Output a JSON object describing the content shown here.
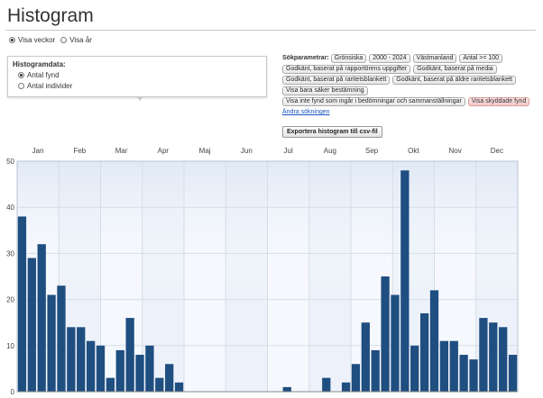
{
  "page": {
    "title": "Histogram"
  },
  "view_toggle": {
    "options": [
      {
        "label": "Visa veckor",
        "selected": true
      },
      {
        "label": "Visa år",
        "selected": false
      }
    ]
  },
  "histogram_data": {
    "heading": "Histogramdata:",
    "options": [
      {
        "label": "Antal fynd",
        "selected": true
      },
      {
        "label": "Antal individer",
        "selected": false
      }
    ]
  },
  "search_params": {
    "label": "Sökparametrar:",
    "tags": [
      {
        "text": "Grönsiska",
        "highlight": false
      },
      {
        "text": "2000 - 2024",
        "highlight": false
      },
      {
        "text": "Västmanland",
        "highlight": false
      },
      {
        "text": "Antal >= 100",
        "highlight": false
      },
      {
        "text": "Godkänt, baserat på rapportörens uppgifter",
        "highlight": false
      },
      {
        "text": "Godkänt, baserat på media",
        "highlight": false
      },
      {
        "text": "Godkänt, baserat på raritetsblankett",
        "highlight": false
      },
      {
        "text": "Godkänt, baserat på äldre raritetsblankett",
        "highlight": false
      },
      {
        "text": "Visa bara säker bestämning",
        "highlight": false
      },
      {
        "text": "Visa inte fynd som ingår i bedömningar och sammanställningar",
        "highlight": false
      },
      {
        "text": "Visa skyddade fynd",
        "highlight": true
      }
    ],
    "change_link": "Ändra sökningen",
    "export_button": "Exportera histogram till csv-fil"
  },
  "colors": {
    "bar": "#1f4e80",
    "grid": "#d5dde6",
    "bg_light": "#f5f8fd",
    "bg_dark": "#e6edf8",
    "axis": "#888888"
  },
  "chart_data": {
    "type": "bar",
    "title": "",
    "xlabel": "",
    "ylabel": "",
    "x_unit": "week",
    "months": [
      "Jan",
      "Feb",
      "Mar",
      "Apr",
      "Maj",
      "Jun",
      "Jul",
      "Aug",
      "Sep",
      "Okt",
      "Nov",
      "Dec"
    ],
    "yticks": [
      0,
      10,
      20,
      30,
      40,
      50
    ],
    "ylim": [
      0,
      50
    ],
    "values": [
      38,
      29,
      32,
      21,
      23,
      14,
      14,
      11,
      10,
      3,
      9,
      16,
      8,
      10,
      3,
      6,
      2,
      0,
      0,
      0,
      0,
      0,
      0,
      0,
      0,
      0,
      0,
      1,
      0,
      0,
      0,
      3,
      0,
      2,
      6,
      15,
      9,
      25,
      21,
      48,
      10,
      17,
      22,
      11,
      11,
      8,
      7,
      16,
      15,
      14,
      8
    ],
    "grid": true
  }
}
